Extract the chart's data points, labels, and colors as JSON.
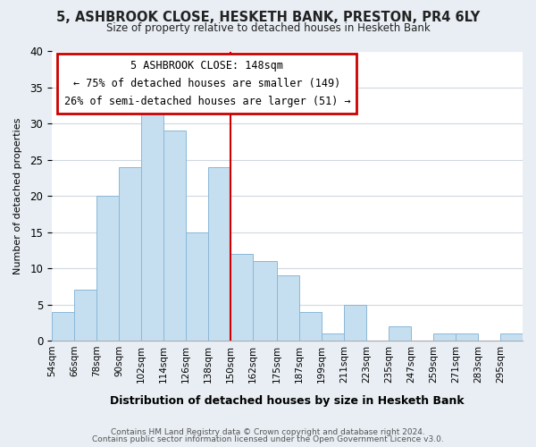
{
  "title1": "5, ASHBROOK CLOSE, HESKETH BANK, PRESTON, PR4 6LY",
  "title2": "Size of property relative to detached houses in Hesketh Bank",
  "xlabel": "Distribution of detached houses by size in Hesketh Bank",
  "ylabel": "Number of detached properties",
  "footer1": "Contains HM Land Registry data © Crown copyright and database right 2024.",
  "footer2": "Contains public sector information licensed under the Open Government Licence v3.0.",
  "bin_labels": [
    "54sqm",
    "66sqm",
    "78sqm",
    "90sqm",
    "102sqm",
    "114sqm",
    "126sqm",
    "138sqm",
    "150sqm",
    "162sqm",
    "175sqm",
    "187sqm",
    "199sqm",
    "211sqm",
    "223sqm",
    "235sqm",
    "247sqm",
    "259sqm",
    "271sqm",
    "283sqm",
    "295sqm"
  ],
  "bin_edges": [
    54,
    66,
    78,
    90,
    102,
    114,
    126,
    138,
    150,
    162,
    175,
    187,
    199,
    211,
    223,
    235,
    247,
    259,
    271,
    283,
    295
  ],
  "bar_heights": [
    4,
    7,
    20,
    24,
    32,
    29,
    15,
    24,
    12,
    11,
    9,
    4,
    1,
    5,
    0,
    2,
    0,
    1,
    1,
    0,
    1
  ],
  "bar_color": "#c5dff0",
  "bar_edge_color": "#8ab8d8",
  "vline_x": 150,
  "vline_color": "#cc0000",
  "annotation_title": "5 ASHBROOK CLOSE: 148sqm",
  "annotation_line1": "← 75% of detached houses are smaller (149)",
  "annotation_line2": "26% of semi-detached houses are larger (51) →",
  "annotation_box_facecolor": "#ffffff",
  "annotation_box_edgecolor": "#cc0000",
  "ylim": [
    0,
    40
  ],
  "yticks": [
    0,
    5,
    10,
    15,
    20,
    25,
    30,
    35,
    40
  ],
  "bg_color": "#e8eef4",
  "plot_bg_color": "#ffffff",
  "grid_color": "#d0d8e0"
}
